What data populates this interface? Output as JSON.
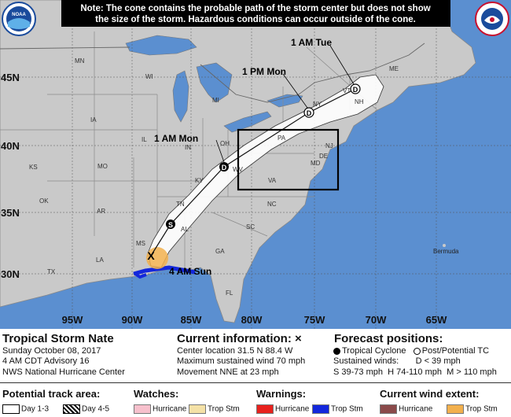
{
  "notice": {
    "line1": "Note: The cone contains the probable path of the storm center but does not show",
    "line2": "the size of the storm. Hazardous conditions can occur outside of the cone."
  },
  "lat_labels": [
    "45N",
    "40N",
    "35N",
    "30N"
  ],
  "lon_labels": [
    "95W",
    "90W",
    "85W",
    "80W",
    "75W",
    "70W",
    "65W"
  ],
  "state_labels": [
    "MN",
    "WI",
    "MI",
    "IA",
    "IL",
    "IN",
    "OH",
    "PA",
    "NY",
    "VT",
    "NH",
    "ME",
    "KS",
    "MO",
    "KY",
    "WV",
    "VA",
    "MD",
    "NC",
    "SC",
    "TN",
    "AR",
    "OK",
    "MS",
    "AL",
    "GA",
    "LA",
    "FL",
    "TX",
    "NJ",
    "DE"
  ],
  "place_labels": [
    "Bermuda"
  ],
  "forecast_points": [
    {
      "label": "4 AM Sun",
      "symbol": "X"
    },
    {
      "label": "",
      "symbol": "S"
    },
    {
      "label": "1 AM Mon",
      "symbol": "D"
    },
    {
      "label": "1 PM Mon",
      "symbol": "D"
    },
    {
      "label": "1 AM Tue",
      "symbol": "D"
    }
  ],
  "storm": {
    "name": "Tropical Storm Nate",
    "date": "Sunday October 08, 2017",
    "advisory": "4 AM CDT Advisory 16",
    "center": "NWS National Hurricane Center"
  },
  "current": {
    "title": "Current information:",
    "title_symbol": "×",
    "location": "Center location 31.5 N 88.4 W",
    "wind": "Maximum sustained wind 70 mph",
    "movement": "Movement NNE at 23 mph"
  },
  "forecast": {
    "title": "Forecast positions:",
    "tc": "Tropical Cyclone",
    "post": "Post/Potential TC",
    "winds_label": "Sustained winds:",
    "d": "D < 39 mph",
    "s": "S 39-73 mph",
    "h": "H 74-110 mph",
    "m": "M > 110 mph"
  },
  "legend": {
    "track_title": "Potential track area:",
    "day13": "Day 1-3",
    "day45": "Day 4-5",
    "watches_title": "Watches:",
    "watch_hurricane": "Hurricane",
    "watch_tropstm": "Trop Stm",
    "warnings_title": "Warnings:",
    "warn_hurricane": "Hurricane",
    "warn_tropstm": "Trop Stm",
    "wind_title": "Current wind extent:",
    "wind_hurricane": "Hurricane",
    "wind_tropstm": "Trop Stm"
  },
  "colors": {
    "ocean": "#5b8fd0",
    "land": "#c9c9c9",
    "cone": "#ffffff",
    "watch_hurricane": "#f7c0cc",
    "watch_tropstm": "#f4e1a6",
    "warn_hurricane": "#e8211d",
    "warn_tropstm": "#1327dc",
    "wind_hurricane": "#8a4a4a",
    "wind_tropstm": "#f2b04d"
  }
}
